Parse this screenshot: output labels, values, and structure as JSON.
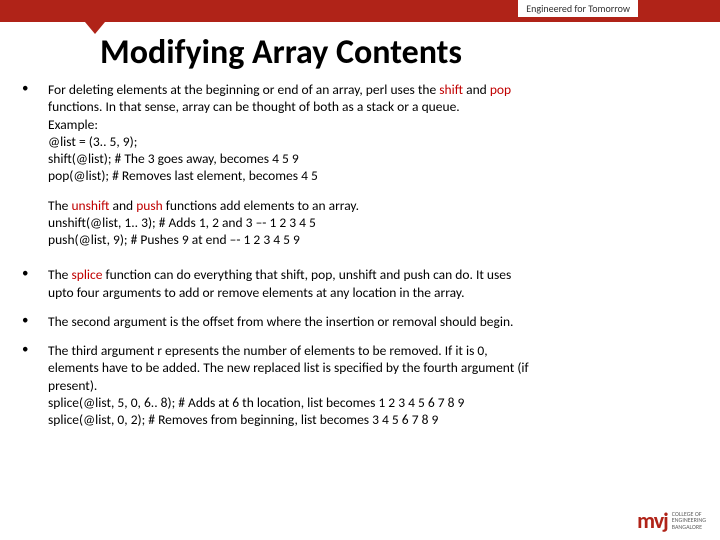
{
  "tagline": "Engineered for Tomorrow",
  "title": "Modifying Array Contents",
  "colors": {
    "accent": "#b02318",
    "keyword": "#c00000",
    "text": "#000000",
    "background": "#ffffff"
  },
  "bullets": [
    {
      "lines": [
        {
          "pre": "For deleting elements at the beginning or end of an array, perl uses the ",
          "kw1": "shift",
          "mid": " and ",
          "kw2": "pop",
          "post": ""
        },
        {
          "plain": "functions. In that sense, array can be thought of both as a stack or a queue."
        },
        {
          "plain": "Example:"
        },
        {
          "plain": "@list = (3.. 5, 9);"
        },
        {
          "plain": "shift(@list);         # The 3 goes away, becomes 4 5 9"
        },
        {
          "plain": "pop(@list);          # Removes last element, becomes 4  5"
        }
      ]
    }
  ],
  "middle": {
    "lines": [
      {
        "pre": "The ",
        "kw1": "unshift",
        "mid": " and ",
        "kw2": "push",
        "post": " functions add elements to an array."
      },
      {
        "plain": "unshift(@list, 1.. 3);           # Adds 1, 2 and 3 –- 1 2 3 4 5"
      },
      {
        "plain": "push(@list, 9);   # Pushes 9 at end –- 1 2 3 4 5 9"
      }
    ]
  },
  "bullets2": [
    {
      "lines": [
        {
          "pre": "The ",
          "kw1": "splice",
          "post": " function can do everything that shift, pop, unshift and push can do. It uses"
        },
        {
          "plain": "upto four arguments to add or remove elements at any location in the array."
        }
      ]
    },
    {
      "lines": [
        {
          "plain": "The second argument is the offset from where the insertion or removal should begin."
        }
      ]
    },
    {
      "lines": [
        {
          "plain": "The third argument r         epresents the number of elements to be removed. If it is 0,"
        },
        {
          "plain": "elements have to be added. The new replaced list is specified by the fourth argument (if"
        },
        {
          "plain": "present)."
        },
        {
          "plain": "splice(@list, 5, 0, 6.. 8);  # Adds at 6 th location, list becomes 1 2 3 4 5 6 7 8 9"
        },
        {
          "plain": "splice(@list, 0, 2);  # Removes from beginning, list becomes 3 4 5 6 7 8 9"
        }
      ]
    }
  ],
  "logo": {
    "mark": "mvj",
    "line1": "COLLEGE OF",
    "line2": "ENGINEERING",
    "line3": "BANGALORE"
  }
}
